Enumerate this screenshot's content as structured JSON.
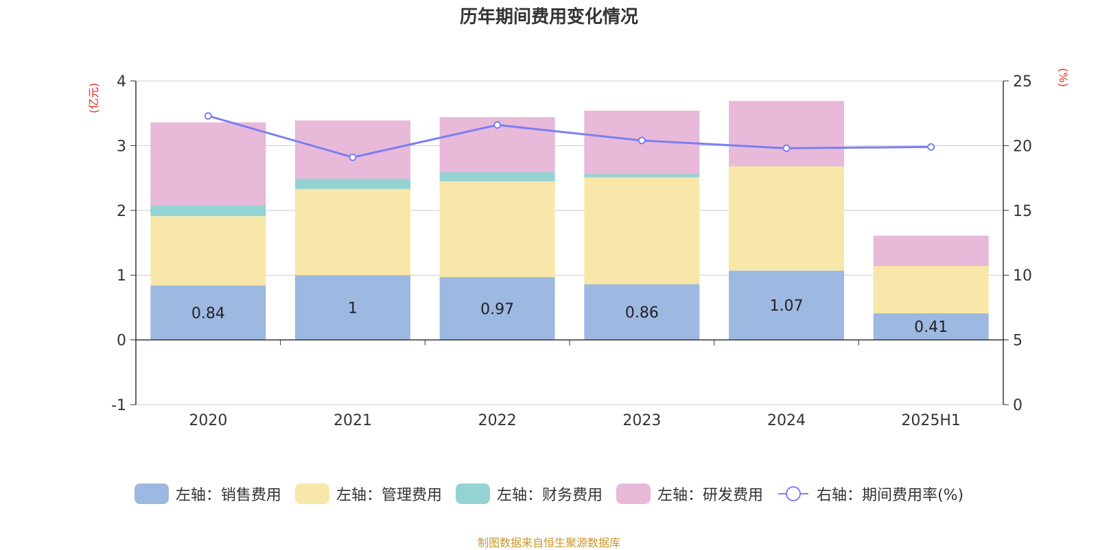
{
  "chart_data": {
    "type": "bar",
    "title": "历年期间费用变化情况",
    "categories": [
      "2020",
      "2021",
      "2022",
      "2023",
      "2024",
      "2025H1"
    ],
    "y_left_unit": "(亿元)",
    "y_right_unit": "(%)",
    "y_left_range": [
      -1,
      4
    ],
    "y_left_ticks": [
      "-1",
      "0",
      "1",
      "2",
      "3",
      "4"
    ],
    "y_right_range": [
      0,
      25
    ],
    "y_right_ticks": [
      "0",
      "5",
      "10",
      "15",
      "20",
      "25"
    ],
    "grid": true,
    "legend_position": "bottom",
    "stacked": true,
    "series": [
      {
        "name": "左轴：销售费用",
        "axis": "left",
        "type": "bar",
        "color": "#9db8e1",
        "values": [
          0.84,
          1.0,
          0.97,
          0.86,
          1.07,
          0.41
        ],
        "labels": [
          "0.84",
          "1",
          "0.97",
          "0.86",
          "1.07",
          "0.41"
        ]
      },
      {
        "name": "左轴：管理费用",
        "axis": "left",
        "type": "bar",
        "color": "#f8e7a8",
        "values": [
          1.07,
          1.33,
          1.48,
          1.65,
          1.61,
          0.73
        ]
      },
      {
        "name": "左轴：财务费用",
        "axis": "left",
        "type": "bar",
        "color": "#95d3d3",
        "values": [
          0.17,
          0.16,
          0.14,
          0.05,
          0.0,
          0.0
        ]
      },
      {
        "name": "左轴：研发费用",
        "axis": "left",
        "type": "bar",
        "color": "#e8b9d9",
        "values": [
          1.28,
          0.9,
          0.85,
          0.98,
          1.01,
          0.47
        ]
      },
      {
        "name": "右轴：期间费用率(%)",
        "axis": "right",
        "type": "line",
        "color": "#7b7ff0",
        "values": [
          22.3,
          19.1,
          21.6,
          20.4,
          19.8,
          19.9
        ]
      }
    ],
    "source": "制图数据来自恒生聚源数据库"
  }
}
